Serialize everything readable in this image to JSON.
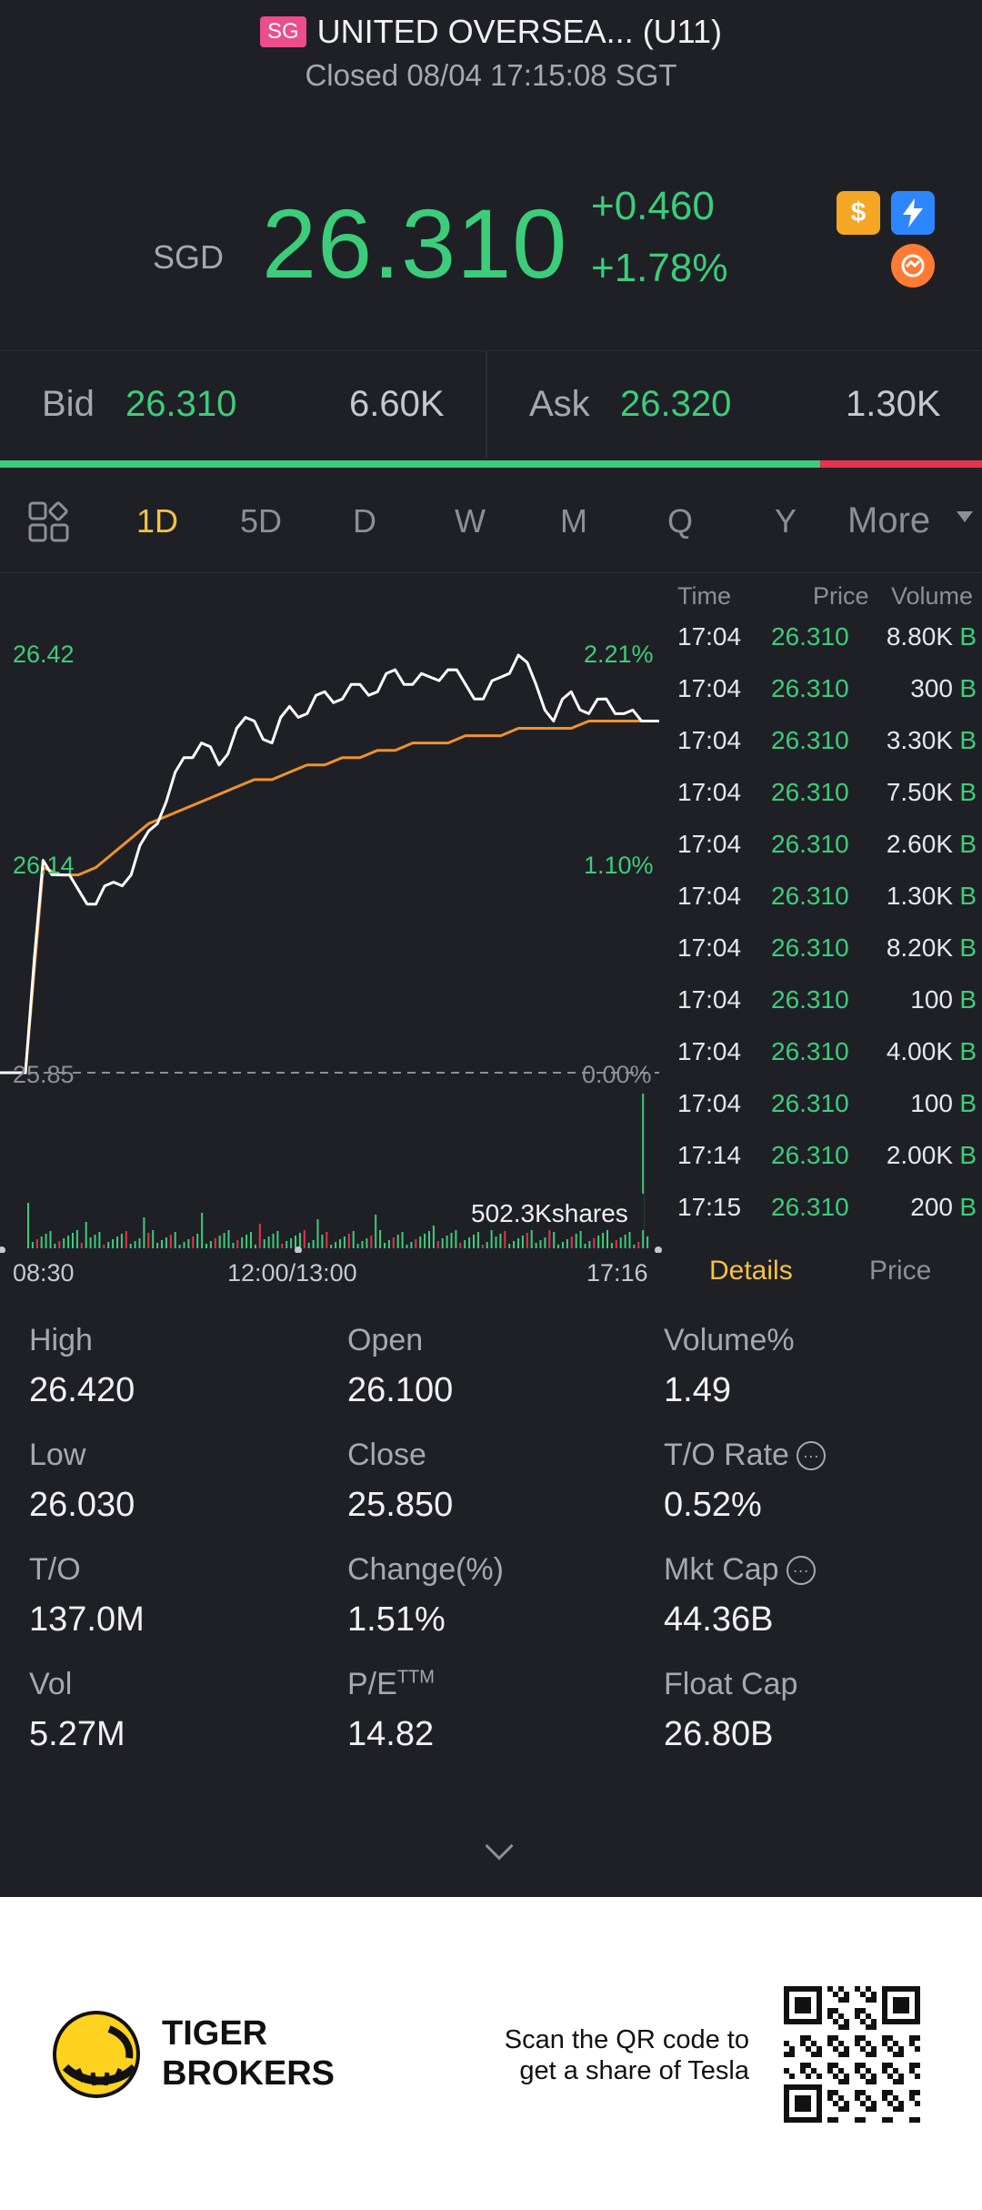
{
  "header": {
    "market_badge": "SG",
    "title": "UNITED OVERSEA... (U11)",
    "status": "Closed 08/04 17:15:08 SGT"
  },
  "quote": {
    "currency": "SGD",
    "price": "26.310",
    "change": "+0.460",
    "change_pct": "+1.78%",
    "colors": {
      "up": "#3ccd7a",
      "down": "#e5334d"
    }
  },
  "bidask": {
    "bid_label": "Bid",
    "bid_price": "26.310",
    "bid_volume": "6.60K",
    "ask_label": "Ask",
    "ask_price": "26.320",
    "ask_volume": "1.30K",
    "bid_ratio": 0.835
  },
  "tabs": {
    "items": [
      "1D",
      "5D",
      "D",
      "W",
      "M",
      "Q",
      "Y"
    ],
    "active": "1D",
    "more_label": "More"
  },
  "chart": {
    "top_price": "26.42",
    "mid_price": "26.14",
    "base_price": "25.85",
    "top_pct": "2.21%",
    "mid_pct": "1.10%",
    "base_pct": "0.00%",
    "volume_label": "502.3Kshares",
    "time_start": "08:30",
    "time_mid": "12:00/13:00",
    "time_end": "17:16"
  },
  "chart_data": {
    "type": "line",
    "series": [
      {
        "values": [
          25.85,
          26.14,
          26.12,
          26.1,
          26.08,
          26.11,
          26.12,
          26.18,
          26.22,
          26.28,
          26.3,
          26.27,
          26.32,
          26.33,
          26.3,
          26.35,
          26.34,
          26.37,
          26.36,
          26.38,
          26.37,
          26.4,
          26.38,
          26.39,
          26.4,
          26.38,
          26.36,
          26.39,
          26.42,
          26.38,
          26.33,
          26.37,
          26.34,
          26.36,
          26.34,
          26.33,
          26.33
        ]
      },
      {
        "values": [
          25.85,
          26.13,
          26.12,
          26.12,
          26.13,
          26.15,
          26.17,
          26.19,
          26.2,
          26.21,
          26.22,
          26.23,
          26.24,
          26.25,
          26.25,
          26.26,
          26.27,
          26.27,
          26.28,
          26.28,
          26.29,
          26.29,
          26.3,
          26.3,
          26.3,
          26.31,
          26.31,
          26.31,
          26.32,
          26.32,
          26.32,
          26.32,
          26.33,
          26.33,
          26.33,
          26.33,
          26.33
        ]
      }
    ],
    "ylim": [
      25.85,
      26.42
    ]
  },
  "ticks": {
    "headers": {
      "time": "Time",
      "price": "Price",
      "volume": "Volume"
    },
    "rows": [
      {
        "time": "17:04",
        "price": "26.310",
        "volume": "8.80K",
        "side": "B"
      },
      {
        "time": "17:04",
        "price": "26.310",
        "volume": "300",
        "side": "B"
      },
      {
        "time": "17:04",
        "price": "26.310",
        "volume": "3.30K",
        "side": "B"
      },
      {
        "time": "17:04",
        "price": "26.310",
        "volume": "7.50K",
        "side": "B"
      },
      {
        "time": "17:04",
        "price": "26.310",
        "volume": "2.60K",
        "side": "B"
      },
      {
        "time": "17:04",
        "price": "26.310",
        "volume": "1.30K",
        "side": "B"
      },
      {
        "time": "17:04",
        "price": "26.310",
        "volume": "8.20K",
        "side": "B"
      },
      {
        "time": "17:04",
        "price": "26.310",
        "volume": "100",
        "side": "B"
      },
      {
        "time": "17:04",
        "price": "26.310",
        "volume": "4.00K",
        "side": "B"
      },
      {
        "time": "17:04",
        "price": "26.310",
        "volume": "100",
        "side": "B"
      },
      {
        "time": "17:14",
        "price": "26.310",
        "volume": "2.00K",
        "side": "B"
      },
      {
        "time": "17:15",
        "price": "26.310",
        "volume": "200",
        "side": "B"
      }
    ],
    "tab_details": "Details",
    "tab_price": "Price"
  },
  "stats": {
    "high_label": "High",
    "high": "26.420",
    "open_label": "Open",
    "open": "26.100",
    "volpct_label": "Volume%",
    "volpct": "1.49",
    "low_label": "Low",
    "low": "26.030",
    "close_label": "Close",
    "close": "25.850",
    "torate_label": "T/O Rate",
    "torate": "0.52%",
    "to_label": "T/O",
    "to": "137.0M",
    "changepct_label": "Change(%)",
    "changepct": "1.51%",
    "mktcap_label": "Mkt Cap",
    "mktcap": "44.36B",
    "vol_label": "Vol",
    "vol": "5.27M",
    "pe_label": "P/E",
    "pe_sup": "TTM",
    "pe": "14.82",
    "floatcap_label": "Float Cap",
    "floatcap": "26.80B",
    "info_glyph": "···"
  },
  "footer": {
    "brand_line1": "TIGER",
    "brand_line2": "BROKERS",
    "scan_line1": "Scan the QR code to",
    "scan_line2": "get a share of Tesla"
  }
}
